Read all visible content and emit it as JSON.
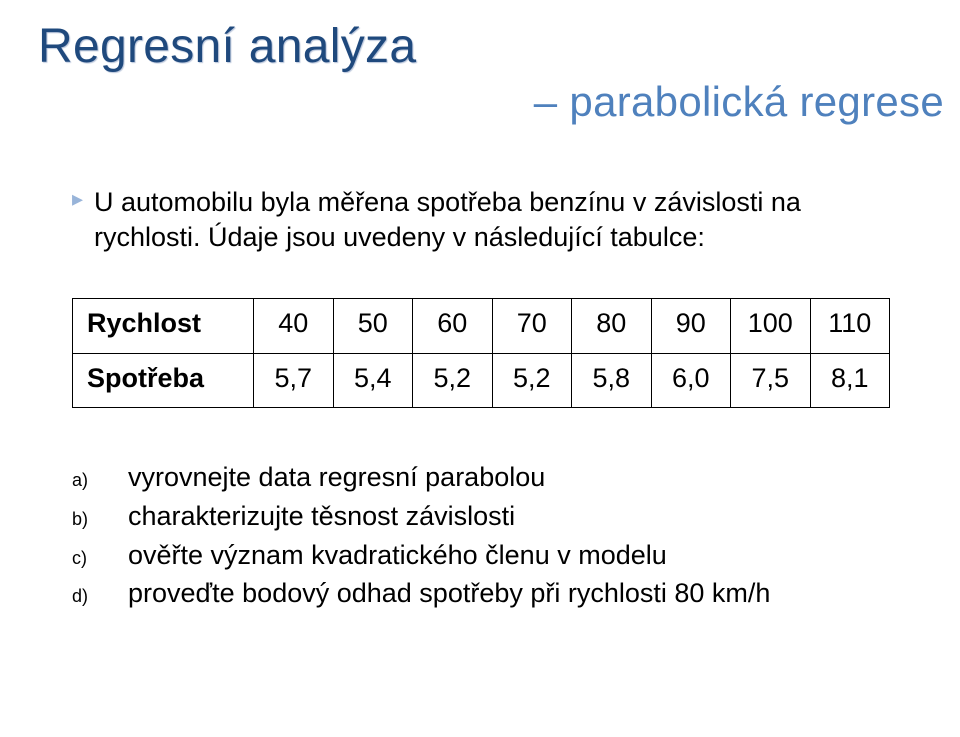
{
  "title": {
    "main": "Regresní analýza",
    "sub": "– parabolická regrese",
    "main_color": "#1f497d",
    "sub_color": "#4f81bd",
    "main_fontsize": 48,
    "sub_fontsize": 42
  },
  "bullet": {
    "mark": "▸",
    "mark_color": "#98b4d9",
    "text": "U automobilu byla měřena spotřeba benzínu v závislosti na rychlosti. Údaje jsou uvedeny v následující tabulce:",
    "fontsize": 27
  },
  "table": {
    "type": "table",
    "border_color": "#000000",
    "cell_fontsize": 27,
    "head_bold": true,
    "col_widths": {
      "rowhead": 160
    },
    "columns": [
      "Rychlost",
      "40",
      "50",
      "60",
      "70",
      "80",
      "90",
      "100",
      "110"
    ],
    "rows": [
      [
        "Spotřeba",
        "5,7",
        "5,4",
        "5,2",
        "5,2",
        "5,8",
        "6,0",
        "7,5",
        "8,1"
      ]
    ]
  },
  "items": {
    "fontsize": 27,
    "marker_fontsize": 18,
    "list": [
      {
        "marker": "a)",
        "text": "vyrovnejte data regresní parabolou"
      },
      {
        "marker": "b)",
        "text": "charakterizujte těsnost závislosti"
      },
      {
        "marker": "c)",
        "text": "ověřte význam kvadratického členu v modelu"
      },
      {
        "marker": "d)",
        "text": "proveďte bodový odhad spotřeby při rychlosti 80 km/h"
      }
    ]
  },
  "background_color": "#ffffff"
}
